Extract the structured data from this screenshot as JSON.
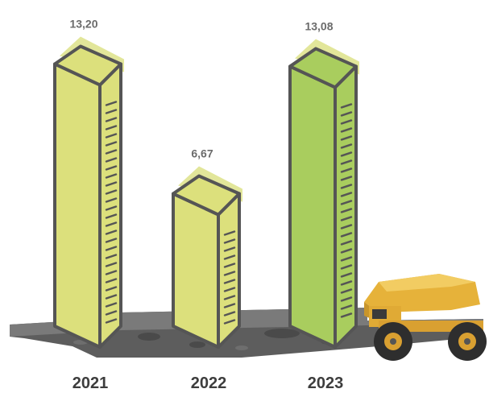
{
  "chart_data": {
    "type": "bar",
    "categories": [
      "2021",
      "2022",
      "2023"
    ],
    "values": [
      13.2,
      6.67,
      13.08
    ],
    "value_labels": [
      "13,20",
      "6,67",
      "13,08"
    ],
    "title": "",
    "xlabel": "",
    "ylabel": "",
    "ylim": [
      0,
      14
    ],
    "grid": false,
    "legend": "none",
    "colors": {
      "bar_light": "#dce07c",
      "bar_highlight": "#a9cd5e",
      "bar_back": "#e2e69a",
      "outline": "#555555",
      "ground": "#5d5d5d",
      "truck": "#e6b23a"
    },
    "highlight_index": 2
  },
  "decorations": {
    "ground": "ground-slab",
    "truck_icon": "mining-dump-truck-icon"
  }
}
